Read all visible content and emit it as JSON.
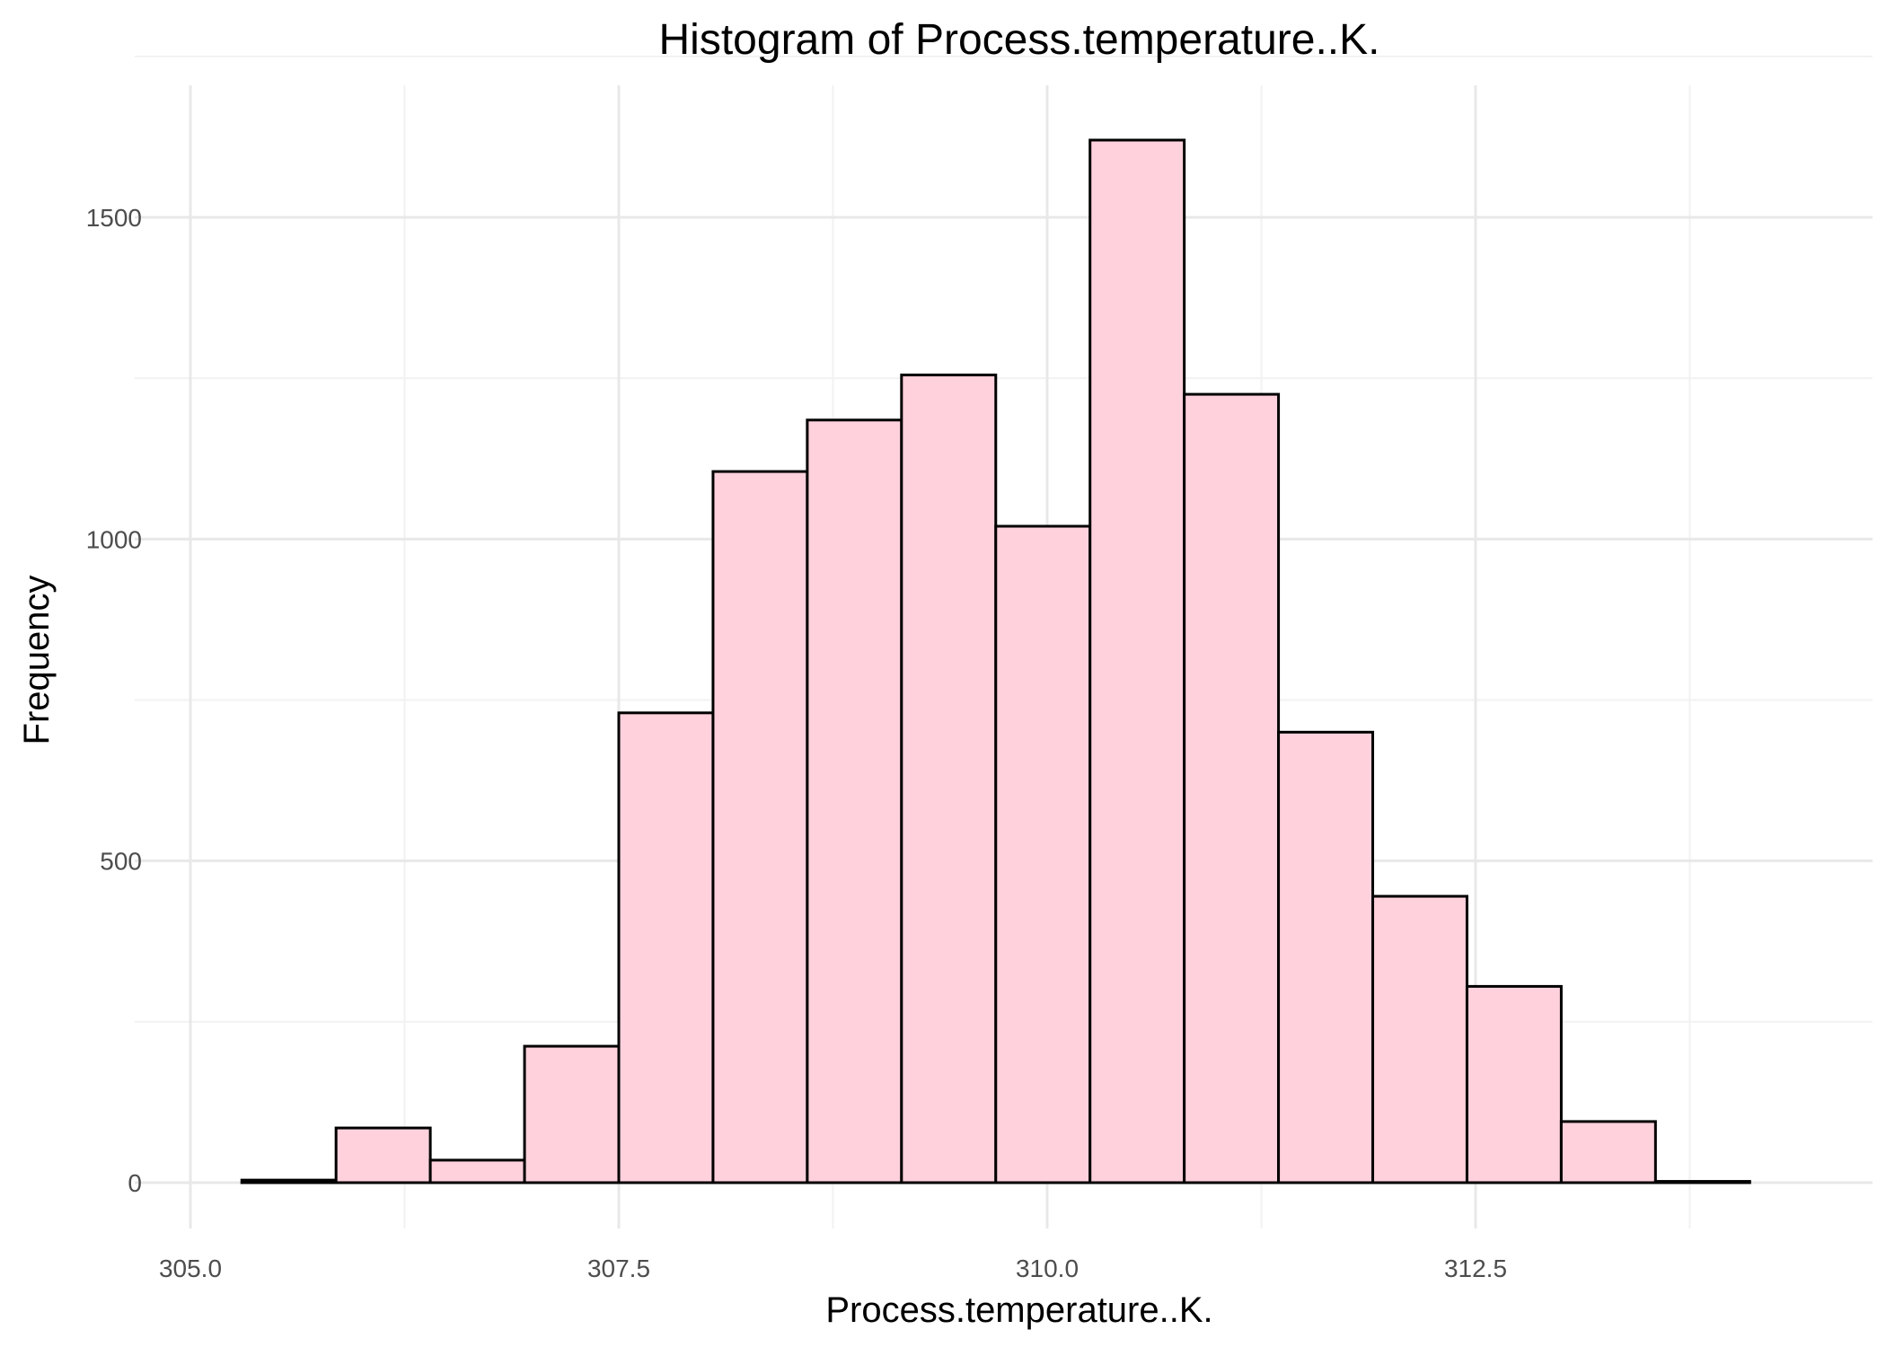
{
  "chart_data": {
    "type": "bar",
    "title": "Histogram of Process.temperature..K.",
    "xlabel": "Process.temperature..K.",
    "ylabel": "Frequency",
    "bin_edges": [
      305.3,
      305.85,
      306.4,
      306.95,
      307.5,
      308.05,
      308.6,
      309.15,
      309.7,
      310.25,
      310.8,
      311.35,
      311.9,
      312.45,
      313.0,
      313.55,
      314.1
    ],
    "values": [
      4,
      85,
      35,
      212,
      730,
      1105,
      1185,
      1255,
      1020,
      1620,
      1225,
      700,
      445,
      305,
      95,
      2
    ],
    "xlim": [
      305.0,
      314.1
    ],
    "ylim": [
      0,
      1650
    ],
    "x_ticks": [
      305.0,
      307.5,
      310.0,
      312.5
    ],
    "x_tick_labels": [
      "305.0",
      "307.5",
      "310.0",
      "312.5"
    ],
    "y_ticks": [
      0,
      500,
      1000,
      1500
    ],
    "y_tick_labels": [
      "0",
      "500",
      "1000",
      "1500"
    ],
    "grid": true,
    "colors": {
      "bar_fill": "#FFD1DC",
      "bar_stroke": "#000000",
      "grid_major": "#e8e8e8",
      "grid_minor": "#f2f2f2"
    }
  }
}
